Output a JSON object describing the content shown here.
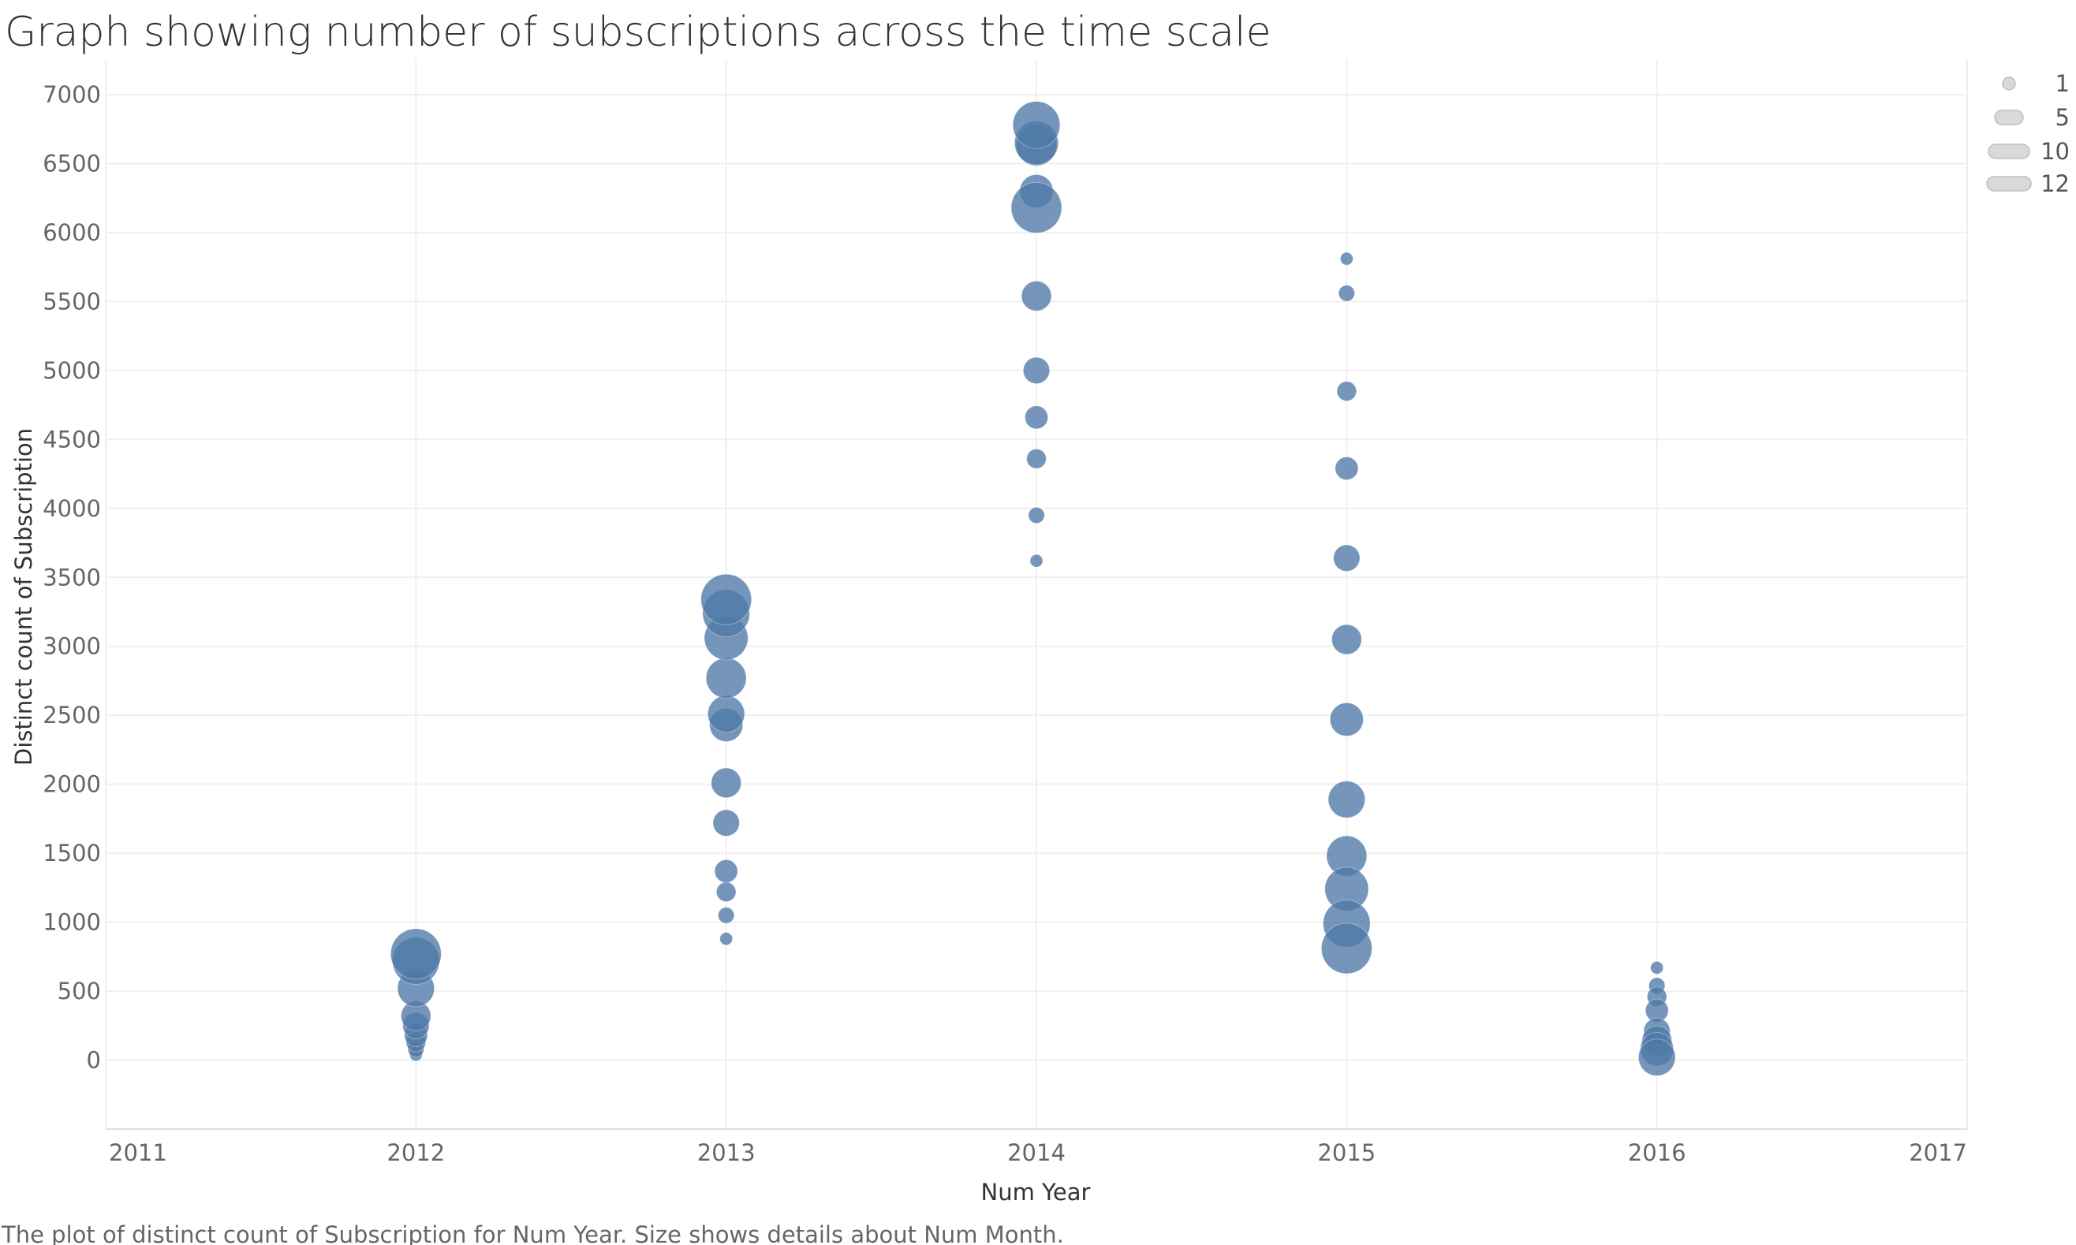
{
  "chart_data": {
    "type": "scatter",
    "title": "Graph showing number of subscriptions across the time scale",
    "xlabel": "Num Year",
    "ylabel": "Distinct count of Subscription",
    "caption": "The plot of distinct count of Subscription for Num Year.  Size shows details about Num Month.",
    "xlim": [
      2011,
      2017
    ],
    "ylim": [
      -500,
      7200
    ],
    "xticks": [
      "2011",
      "2012",
      "2013",
      "2014",
      "2015",
      "2016",
      "2017"
    ],
    "yticks": [
      "0",
      "500",
      "1000",
      "1500",
      "2000",
      "2500",
      "3000",
      "3500",
      "4000",
      "4500",
      "5000",
      "5500",
      "6000",
      "6500",
      "7000"
    ],
    "grid": true,
    "mark_color": "#4e79a7",
    "size_legend": {
      "title": "",
      "position": "top-right",
      "entries": [
        {
          "label": "1",
          "value": 1
        },
        {
          "label": "5",
          "value": 5
        },
        {
          "label": "10",
          "value": 10
        },
        {
          "label": "12",
          "value": 12
        }
      ]
    },
    "points": [
      {
        "x": 2012,
        "y": 40,
        "size": 1
      },
      {
        "x": 2012,
        "y": 80,
        "size": 2
      },
      {
        "x": 2012,
        "y": 130,
        "size": 3
      },
      {
        "x": 2012,
        "y": 180,
        "size": 4
      },
      {
        "x": 2012,
        "y": 250,
        "size": 5
      },
      {
        "x": 2012,
        "y": 320,
        "size": 6
      },
      {
        "x": 2012,
        "y": 520,
        "size": 8
      },
      {
        "x": 2012,
        "y": 720,
        "size": 11
      },
      {
        "x": 2012,
        "y": 770,
        "size": 12
      },
      {
        "x": 2013,
        "y": 880,
        "size": 1
      },
      {
        "x": 2013,
        "y": 1050,
        "size": 2
      },
      {
        "x": 2013,
        "y": 1220,
        "size": 3
      },
      {
        "x": 2013,
        "y": 1370,
        "size": 4
      },
      {
        "x": 2013,
        "y": 1720,
        "size": 5
      },
      {
        "x": 2013,
        "y": 2010,
        "size": 6
      },
      {
        "x": 2013,
        "y": 2430,
        "size": 7
      },
      {
        "x": 2013,
        "y": 2510,
        "size": 8
      },
      {
        "x": 2013,
        "y": 2770,
        "size": 9
      },
      {
        "x": 2013,
        "y": 3060,
        "size": 10
      },
      {
        "x": 2013,
        "y": 3240,
        "size": 11
      },
      {
        "x": 2013,
        "y": 3340,
        "size": 12
      },
      {
        "x": 2014,
        "y": 3620,
        "size": 1
      },
      {
        "x": 2014,
        "y": 3950,
        "size": 2
      },
      {
        "x": 2014,
        "y": 4360,
        "size": 3
      },
      {
        "x": 2014,
        "y": 4660,
        "size": 4
      },
      {
        "x": 2014,
        "y": 5000,
        "size": 5
      },
      {
        "x": 2014,
        "y": 5540,
        "size": 6
      },
      {
        "x": 2014,
        "y": 6300,
        "size": 7
      },
      {
        "x": 2014,
        "y": 6180,
        "size": 12
      },
      {
        "x": 2014,
        "y": 6630,
        "size": 9
      },
      {
        "x": 2014,
        "y": 6650,
        "size": 10
      },
      {
        "x": 2014,
        "y": 6780,
        "size": 11
      },
      {
        "x": 2015,
        "y": 5810,
        "size": 1
      },
      {
        "x": 2015,
        "y": 5560,
        "size": 2
      },
      {
        "x": 2015,
        "y": 4850,
        "size": 3
      },
      {
        "x": 2015,
        "y": 4290,
        "size": 4
      },
      {
        "x": 2015,
        "y": 3640,
        "size": 5
      },
      {
        "x": 2015,
        "y": 3050,
        "size": 6
      },
      {
        "x": 2015,
        "y": 2470,
        "size": 7
      },
      {
        "x": 2015,
        "y": 1890,
        "size": 8
      },
      {
        "x": 2015,
        "y": 1480,
        "size": 9
      },
      {
        "x": 2015,
        "y": 1240,
        "size": 10
      },
      {
        "x": 2015,
        "y": 990,
        "size": 11
      },
      {
        "x": 2015,
        "y": 810,
        "size": 12
      },
      {
        "x": 2016,
        "y": 670,
        "size": 1
      },
      {
        "x": 2016,
        "y": 540,
        "size": 2
      },
      {
        "x": 2016,
        "y": 460,
        "size": 3
      },
      {
        "x": 2016,
        "y": 360,
        "size": 4
      },
      {
        "x": 2016,
        "y": 210,
        "size": 5
      },
      {
        "x": 2016,
        "y": 140,
        "size": 6
      },
      {
        "x": 2016,
        "y": 80,
        "size": 7
      },
      {
        "x": 2016,
        "y": 20,
        "size": 8
      }
    ]
  }
}
